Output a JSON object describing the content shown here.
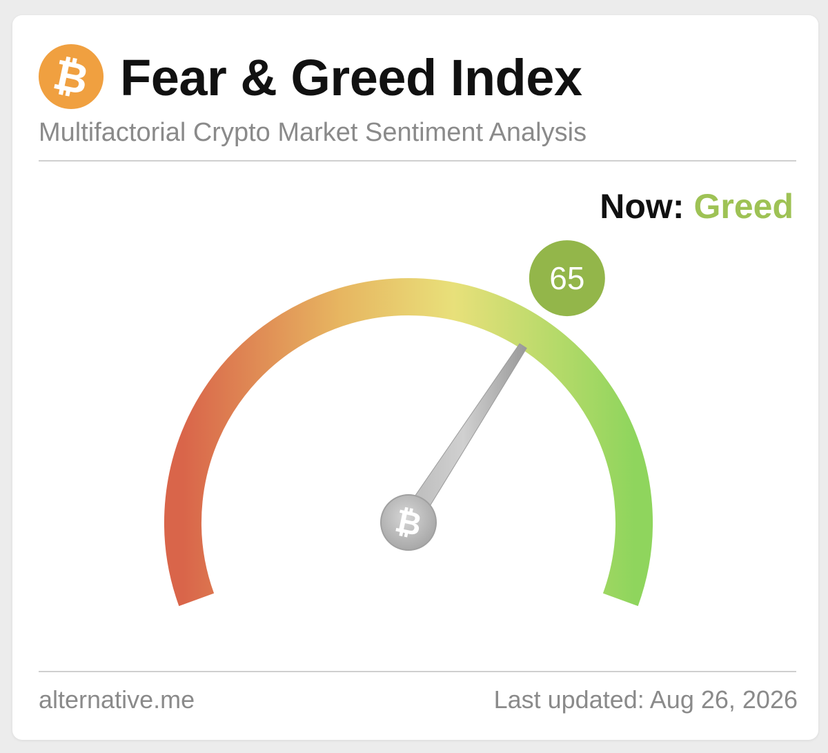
{
  "header": {
    "title": "Fear & Greed Index",
    "subtitle": "Multifactorial Crypto Market Sentiment Analysis",
    "logo_icon": "bitcoin-icon",
    "logo_color": "#f0a040"
  },
  "status": {
    "now_label": "Now:",
    "now_value": "Greed",
    "now_color": "#9ec255"
  },
  "gauge": {
    "value": 65,
    "value_text": "65",
    "min": 0,
    "max": 100,
    "badge_color": "#93b64a",
    "hub_icon": "bitcoin-icon",
    "colors": [
      "#d9654a",
      "#e7b661",
      "#e8e07a",
      "#8fd55d"
    ]
  },
  "footer": {
    "source": "alternative.me",
    "updated_label": "Last updated:",
    "updated_date": "Aug 26, 2026"
  }
}
